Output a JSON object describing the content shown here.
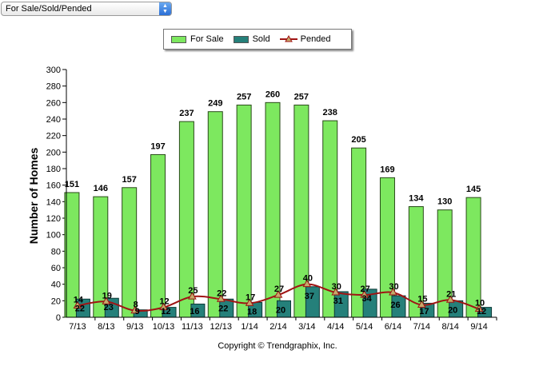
{
  "dropdown": {
    "selected": "For Sale/Sold/Pended"
  },
  "legend": [
    "For Sale",
    "Sold",
    "Pended"
  ],
  "copyright": "Copyright © Trendgraphix, Inc.",
  "colors": {
    "for_sale": "#7de85f",
    "sold": "#25807a",
    "pended": "#a01414",
    "pended_marker": "#c4a96a"
  },
  "chart_data": {
    "type": "bar",
    "ylabel": "Number of Homes",
    "ylim": [
      0,
      300
    ],
    "yticks": [
      0,
      20,
      40,
      60,
      80,
      100,
      120,
      140,
      160,
      180,
      200,
      220,
      240,
      260,
      280,
      300
    ],
    "categories": [
      "7/13",
      "8/13",
      "9/13",
      "10/13",
      "11/13",
      "12/13",
      "1/14",
      "2/14",
      "3/14",
      "4/14",
      "5/14",
      "6/14",
      "7/14",
      "8/14",
      "9/14"
    ],
    "series": [
      {
        "name": "For Sale",
        "type": "bar",
        "values": [
          151,
          146,
          157,
          197,
          237,
          249,
          257,
          260,
          257,
          238,
          205,
          169,
          134,
          130,
          145
        ]
      },
      {
        "name": "Sold",
        "type": "bar",
        "values": [
          22,
          23,
          9,
          12,
          16,
          22,
          18,
          20,
          37,
          31,
          34,
          26,
          17,
          20,
          12
        ]
      },
      {
        "name": "Pended",
        "type": "line",
        "values": [
          14,
          19,
          8,
          12,
          25,
          22,
          17,
          27,
          40,
          30,
          27,
          30,
          15,
          21,
          10
        ]
      }
    ]
  }
}
